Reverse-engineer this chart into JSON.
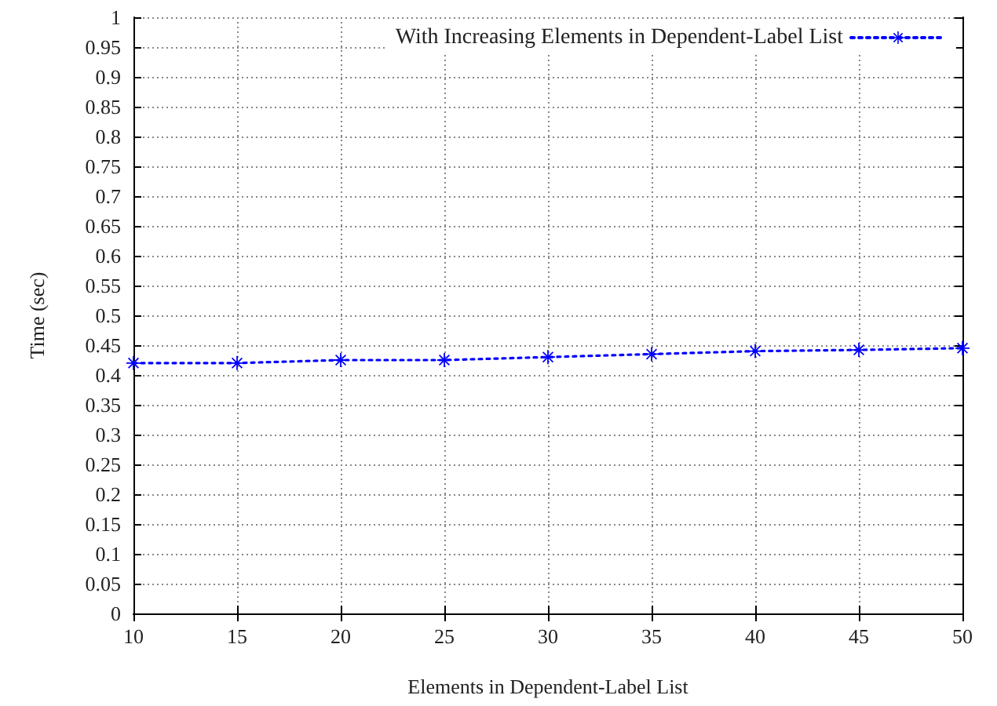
{
  "chart_data": {
    "type": "line",
    "xlabel": "Elements in Dependent-Label List",
    "ylabel": "Time (sec)",
    "x": [
      10,
      15,
      20,
      25,
      30,
      35,
      40,
      45,
      50
    ],
    "series": [
      {
        "name": "With Increasing Elements in Dependent-Label List",
        "color": "#0000ff",
        "values": [
          0.42,
          0.42,
          0.425,
          0.425,
          0.43,
          0.435,
          0.44,
          0.442,
          0.445
        ]
      }
    ],
    "xlim": [
      10,
      50
    ],
    "xticks": [
      10,
      15,
      20,
      25,
      30,
      35,
      40,
      45,
      50
    ],
    "ylim": [
      0,
      1
    ],
    "yticks": [
      0,
      0.05,
      0.1,
      0.15,
      0.2,
      0.25,
      0.3,
      0.35,
      0.4,
      0.45,
      0.5,
      0.55,
      0.6,
      0.65,
      0.7,
      0.75,
      0.8,
      0.85,
      0.9,
      0.95,
      1
    ],
    "grid": true,
    "legend": "top right",
    "marker": "star",
    "line_style": "dotted"
  }
}
